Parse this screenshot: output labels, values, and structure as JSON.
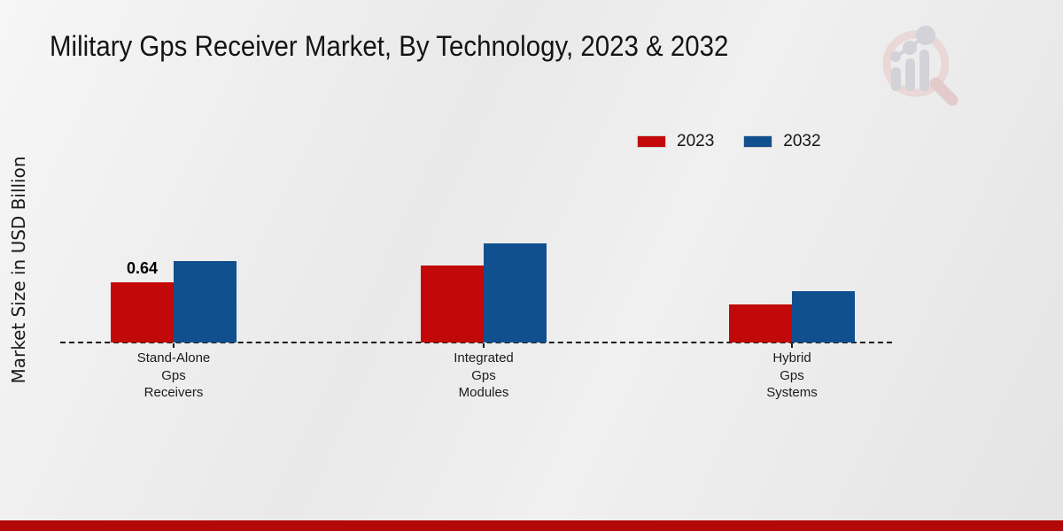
{
  "title": "Military Gps Receiver Market, By Technology, 2023 & 2032",
  "chart_data": {
    "type": "bar",
    "categories": [
      [
        "Stand-Alone",
        "Gps",
        "Receivers"
      ],
      [
        "Integrated",
        "Gps",
        "Modules"
      ],
      [
        "Hybrid",
        "Gps",
        "Systems"
      ]
    ],
    "series": [
      {
        "name": "2023",
        "color": "#c20808",
        "values": [
          0.64,
          0.82,
          0.4
        ]
      },
      {
        "name": "2032",
        "color": "#11508e",
        "values": [
          0.87,
          1.05,
          0.55
        ]
      }
    ],
    "title": "Military Gps Receiver Market, By Technology, 2023 & 2032",
    "xlabel": "",
    "ylabel": "Market Size in USD Billion",
    "grid": false,
    "legend_position": "top-right",
    "baseline_style": "dashed",
    "data_labels": [
      {
        "series": "2023",
        "category_index": 0,
        "text": "0.64"
      }
    ]
  },
  "footer": {
    "accent_bar_color": "#b20808"
  },
  "logo": {
    "name": "market-research-future-logo",
    "ring_color": "#ead7d7",
    "glyph_color": "#d2d2d8",
    "handle_color": "#e3cbcb"
  }
}
